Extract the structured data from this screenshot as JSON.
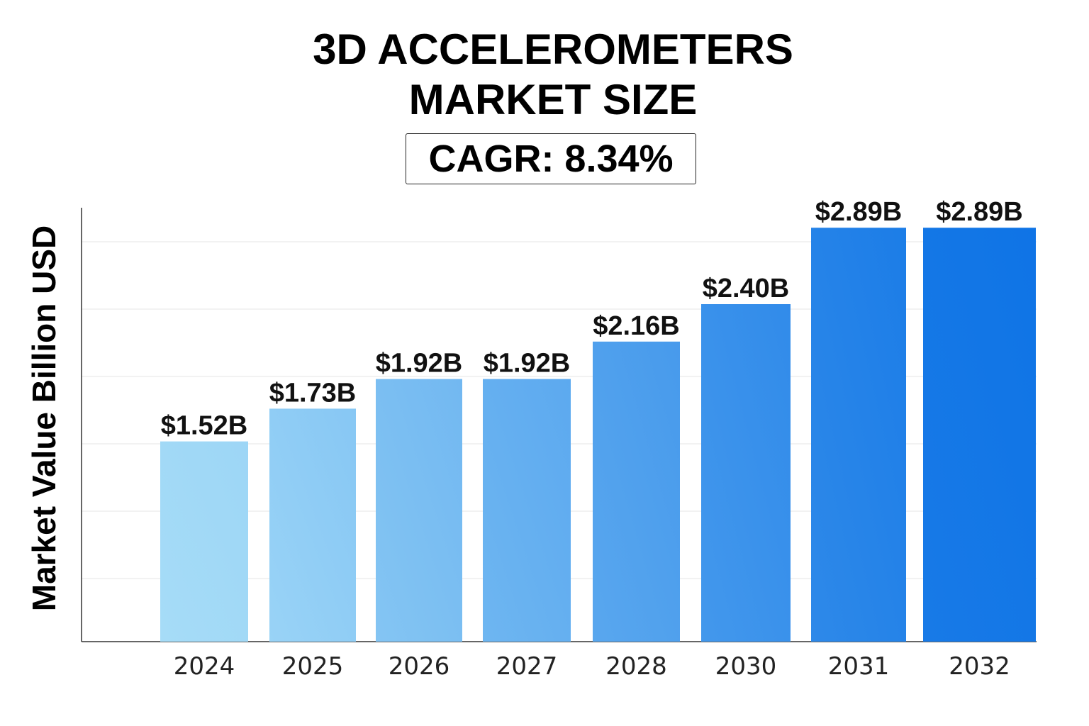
{
  "chart_data": {
    "type": "bar",
    "title_line_1": "3D ACCELEROMETERS",
    "title_line_2": "MARKET SIZE",
    "subtitle": "CAGR: 8.34%",
    "xlabel": "",
    "ylabel": "Market Value Billion USD",
    "categories": [
      "2024",
      "2025",
      "2026",
      "2027",
      "2028",
      "2030",
      "2031",
      "2032"
    ],
    "values": [
      1.52,
      1.73,
      1.92,
      1.92,
      2.16,
      2.4,
      2.89,
      2.89
    ],
    "value_labels": [
      "$1.52B",
      "$1.73B",
      "$1.92B",
      "$1.92B",
      "$2.16B",
      "$2.40B",
      "$2.89B",
      "$2.89B"
    ],
    "ylim": [
      0,
      3.0
    ],
    "grid": true,
    "legend": "none",
    "colors": {
      "bar_start": "#a6dcf7",
      "bar_end": "#0f74e6",
      "grid": "#eeeeee",
      "axis": "#333333"
    }
  }
}
